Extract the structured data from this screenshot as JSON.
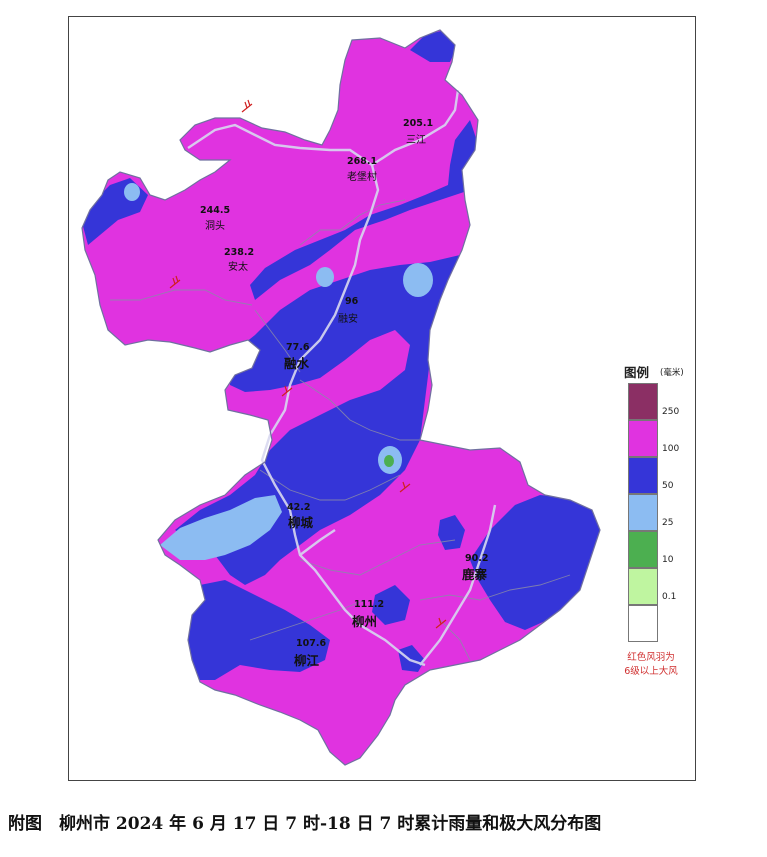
{
  "caption": "附图　柳州市 2024 年 6 月 17 日 7 时-18 日 7 时累计雨量和极大风分布图",
  "legend": {
    "title": "图例",
    "unit": "(毫米)",
    "classes": [
      {
        "color": "#8b2f64",
        "tick": "250"
      },
      {
        "color": "#e033e0",
        "tick": "100"
      },
      {
        "color": "#3535d8",
        "tick": "50"
      },
      {
        "color": "#8cbcf2",
        "tick": "25"
      },
      {
        "color": "#4caf50",
        "tick": "10"
      },
      {
        "color": "#bff5a0",
        "tick": "0.1"
      },
      {
        "color": "#ffffff",
        "tick": ""
      }
    ],
    "note_line1": "红色风羽为",
    "note_line2": "6级以上大风"
  },
  "stations": [
    {
      "value": "205.1",
      "name": "三江"
    },
    {
      "value": "268.1",
      "name": "老堡村"
    },
    {
      "value": "244.5",
      "name": "洞头"
    },
    {
      "value": "238.2",
      "name": "安太"
    },
    {
      "value": "96",
      "name": "融安"
    },
    {
      "value": "77.6",
      "name": "融水"
    },
    {
      "value": "42.2",
      "name": "柳城"
    },
    {
      "value": "90.2",
      "name": "鹿寨"
    },
    {
      "value": "111.2",
      "name": "柳州"
    },
    {
      "value": "107.6",
      "name": "柳江"
    }
  ]
}
